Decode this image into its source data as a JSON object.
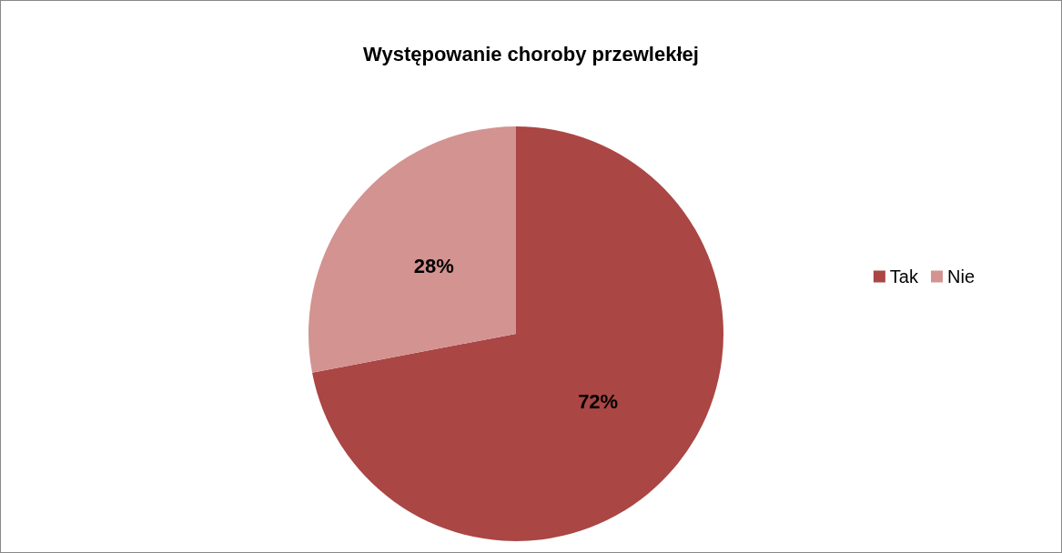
{
  "chart_data": {
    "type": "pie",
    "title": "Występowanie choroby przewlekłej",
    "categories": [
      "Tak",
      "Nie"
    ],
    "values": [
      72,
      28
    ],
    "colors": [
      "#aa4644",
      "#d39391"
    ],
    "value_labels": [
      "72%",
      "28%"
    ],
    "legend": "right"
  }
}
